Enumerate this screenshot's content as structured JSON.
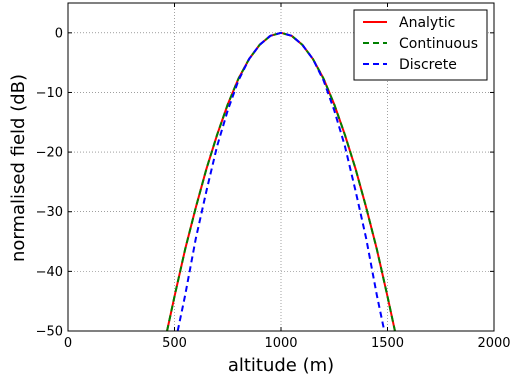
{
  "chart_data": {
    "type": "line",
    "xlabel": "altitude (m)",
    "ylabel": "normalised field (dB)",
    "xlim": [
      0,
      2000
    ],
    "ylim": [
      -50,
      5
    ],
    "xticks": [
      0,
      500,
      1000,
      1500,
      2000
    ],
    "yticks": [
      0,
      -10,
      -20,
      -30,
      -40,
      -50
    ],
    "grid": true,
    "legend_position": "top-right",
    "series": [
      {
        "name": "Analytic",
        "color": "#ff0000",
        "dash": "solid",
        "x": [
          465,
          500,
          550,
          600,
          650,
          700,
          750,
          800,
          850,
          900,
          950,
          1000,
          1050,
          1100,
          1150,
          1200,
          1250,
          1300,
          1350,
          1400,
          1450,
          1500,
          1535
        ],
        "y": [
          -50,
          -44.2,
          -36.3,
          -29.3,
          -22.8,
          -17.1,
          -12.0,
          -7.7,
          -4.4,
          -2.0,
          -0.5,
          0,
          -0.5,
          -2.0,
          -4.4,
          -7.7,
          -12.0,
          -17.1,
          -22.8,
          -29.3,
          -36.3,
          -44.2,
          -50
        ]
      },
      {
        "name": "Continuous",
        "color": "#008000",
        "dash": "dashed",
        "x": [
          465,
          500,
          550,
          600,
          650,
          700,
          750,
          800,
          850,
          900,
          950,
          1000,
          1050,
          1100,
          1150,
          1200,
          1250,
          1300,
          1350,
          1400,
          1450,
          1500,
          1535
        ],
        "y": [
          -50,
          -44.2,
          -36.3,
          -29.3,
          -22.8,
          -17.1,
          -12.0,
          -7.7,
          -4.4,
          -2.0,
          -0.5,
          0,
          -0.5,
          -2.0,
          -4.4,
          -7.7,
          -12.0,
          -17.1,
          -22.8,
          -29.3,
          -36.3,
          -44.2,
          -50
        ]
      },
      {
        "name": "Discrete",
        "color": "#0000ff",
        "dash": "dashed",
        "x": [
          515,
          550,
          600,
          650,
          700,
          750,
          800,
          850,
          900,
          950,
          1000,
          1050,
          1100,
          1150,
          1200,
          1250,
          1300,
          1350,
          1400,
          1450,
          1485
        ],
        "y": [
          -50,
          -44.0,
          -34.5,
          -26.5,
          -19.0,
          -13.0,
          -8.0,
          -4.4,
          -2.0,
          -0.5,
          0,
          -0.5,
          -2.0,
          -4.4,
          -8.0,
          -13.0,
          -19.0,
          -26.5,
          -34.5,
          -44.0,
          -50
        ]
      }
    ]
  }
}
